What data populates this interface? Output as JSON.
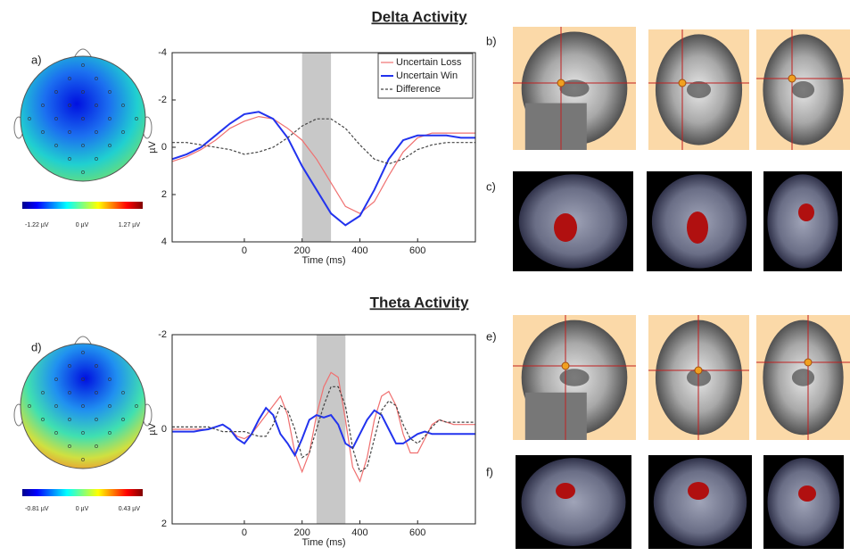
{
  "panel_labels": [
    "a)",
    "b)",
    "c)",
    "d)",
    "e)",
    "f)"
  ],
  "topomaps": [
    {
      "colorbar_labels": [
        "-1.22 µV",
        "0 µV",
        "1.27 µV"
      ]
    },
    {
      "colorbar_labels": [
        "-0.81 µV",
        "0 µV",
        "0.43 µV"
      ]
    }
  ],
  "chart_data": [
    {
      "type": "line",
      "title": "Delta Activity",
      "xlabel": "Time (ms)",
      "ylabel": "µV",
      "xlim": [
        -250,
        800
      ],
      "xticks": [
        0,
        200,
        400,
        600
      ],
      "ylim": [
        -4,
        4
      ],
      "yticks": [
        -4,
        -2,
        0,
        2,
        4
      ],
      "y_inverted": true,
      "shaded_region": [
        200,
        300
      ],
      "legend": "upper right",
      "x": [
        -250,
        -200,
        -150,
        -100,
        -50,
        0,
        50,
        100,
        150,
        200,
        250,
        300,
        350,
        400,
        450,
        500,
        550,
        600,
        650,
        700,
        750,
        800
      ],
      "series": [
        {
          "name": "Uncertain Loss",
          "color": "#f07070",
          "dashed": false,
          "values": [
            0.6,
            0.4,
            0.1,
            -0.3,
            -0.8,
            -1.1,
            -1.3,
            -1.2,
            -0.8,
            -0.3,
            0.5,
            1.5,
            2.5,
            2.8,
            2.3,
            1.2,
            0.2,
            -0.4,
            -0.6,
            -0.6,
            -0.6,
            -0.6
          ]
        },
        {
          "name": "Uncertain Win",
          "color": "#2233ee",
          "dashed": false,
          "values": [
            0.5,
            0.3,
            0,
            -0.5,
            -1.0,
            -1.4,
            -1.5,
            -1.2,
            -0.4,
            0.8,
            1.8,
            2.8,
            3.3,
            2.9,
            1.8,
            0.5,
            -0.3,
            -0.5,
            -0.5,
            -0.5,
            -0.4,
            -0.4
          ]
        },
        {
          "name": "Difference",
          "color": "#444444",
          "dashed": true,
          "values": [
            -0.2,
            -0.2,
            -0.1,
            0,
            0.1,
            0.3,
            0.2,
            0,
            -0.4,
            -0.9,
            -1.2,
            -1.2,
            -0.8,
            -0.1,
            0.5,
            0.7,
            0.5,
            0.1,
            -0.1,
            -0.2,
            -0.2,
            -0.2
          ]
        }
      ]
    },
    {
      "type": "line",
      "title": "Theta Activity",
      "xlabel": "Time (ms)",
      "ylabel": "µV",
      "xlim": [
        -250,
        800
      ],
      "xticks": [
        0,
        200,
        400,
        600
      ],
      "ylim": [
        -2,
        2
      ],
      "yticks": [
        -2,
        0,
        2
      ],
      "y_inverted": true,
      "shaded_region": [
        250,
        350
      ],
      "x": [
        -250,
        -225,
        -200,
        -175,
        -150,
        -125,
        -100,
        -75,
        -50,
        -25,
        0,
        25,
        50,
        75,
        100,
        125,
        150,
        175,
        200,
        225,
        250,
        275,
        300,
        325,
        350,
        375,
        400,
        425,
        450,
        475,
        500,
        525,
        550,
        575,
        600,
        625,
        650,
        675,
        700,
        725,
        750,
        775,
        800
      ],
      "series": [
        {
          "name": "Uncertain Loss",
          "color": "#f07070",
          "dashed": false,
          "values": [
            0,
            0,
            0,
            0,
            0,
            0,
            -0.05,
            -0.1,
            0,
            0.15,
            0.2,
            0.1,
            -0.1,
            -0.3,
            -0.5,
            -0.7,
            -0.3,
            0.5,
            0.9,
            0.5,
            -0.3,
            -0.9,
            -1.2,
            -1.1,
            -0.2,
            0.8,
            1.1,
            0.6,
            -0.2,
            -0.7,
            -0.8,
            -0.5,
            0.1,
            0.5,
            0.5,
            0.2,
            -0.1,
            -0.2,
            -0.15,
            -0.1,
            -0.1,
            -0.1,
            -0.1
          ]
        },
        {
          "name": "Uncertain Win",
          "color": "#2233ee",
          "dashed": false,
          "values": [
            0.05,
            0.05,
            0.05,
            0.05,
            0.02,
            0,
            -0.05,
            -0.1,
            0,
            0.2,
            0.3,
            0.1,
            -0.2,
            -0.45,
            -0.3,
            0.1,
            0.3,
            0.55,
            0.2,
            -0.2,
            -0.3,
            -0.25,
            -0.3,
            -0.1,
            0.3,
            0.4,
            0.1,
            -0.2,
            -0.4,
            -0.3,
            0,
            0.3,
            0.3,
            0.2,
            0.1,
            0.05,
            0.1,
            0.1,
            0.1,
            0.1,
            0.1,
            0.1,
            0.1
          ]
        },
        {
          "name": "Difference",
          "color": "#444444",
          "dashed": true,
          "values": [
            -0.05,
            -0.05,
            -0.05,
            -0.05,
            -0.05,
            -0.05,
            0,
            0.05,
            0.05,
            0.05,
            0.05,
            0.1,
            0.15,
            0.15,
            -0.1,
            -0.5,
            -0.4,
            0,
            0.6,
            0.5,
            0,
            -0.5,
            -0.9,
            -0.9,
            -0.5,
            0.4,
            0.9,
            0.8,
            0.2,
            -0.4,
            -0.6,
            -0.5,
            -0.1,
            0.2,
            0.3,
            0.15,
            -0.05,
            -0.2,
            -0.15,
            -0.15,
            -0.15,
            -0.15,
            -0.15
          ]
        }
      ]
    }
  ]
}
